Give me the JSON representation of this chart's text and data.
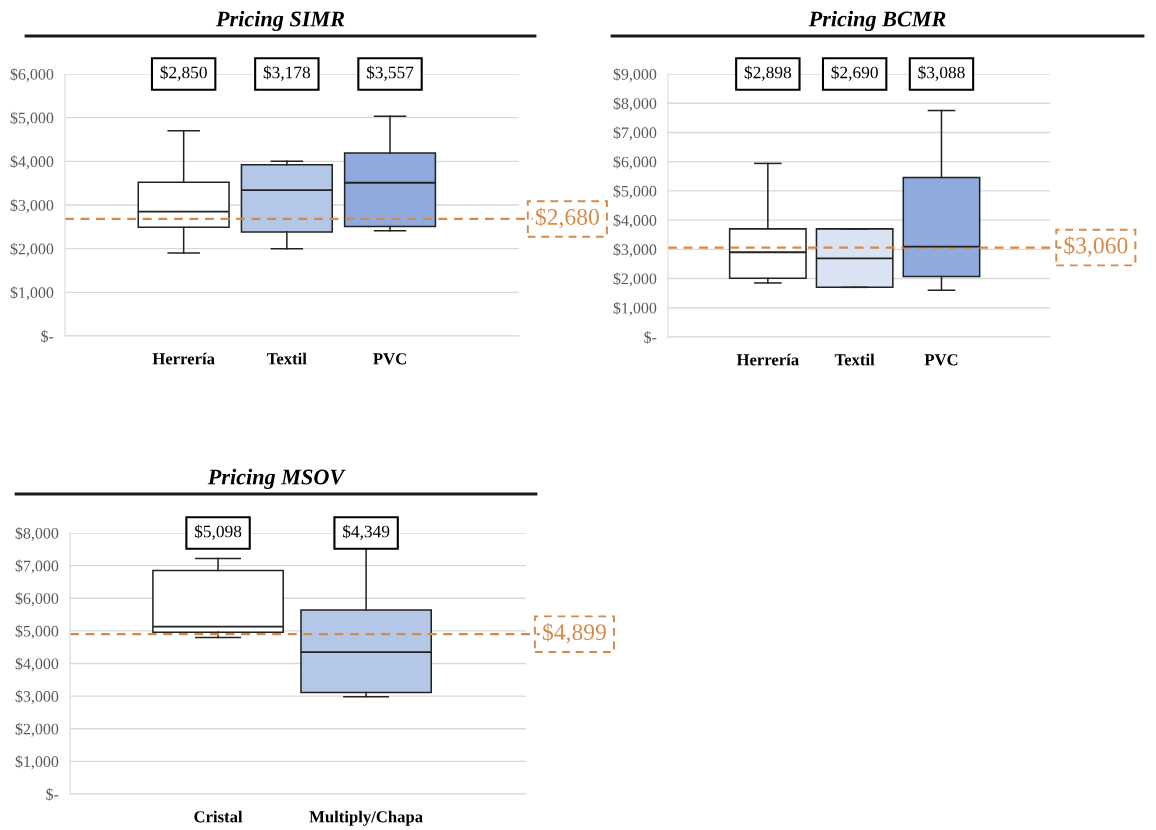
{
  "chart_data": [
    {
      "type": "box",
      "title": "Pricing SIMR",
      "categories": [
        "Herrería",
        "Textil",
        "PVC"
      ],
      "colors": [
        "#ffffff",
        "#b4c7e7",
        "#8faadc"
      ],
      "boxes": [
        {
          "low": 1900,
          "q1": 2490,
          "median": 2850,
          "q3": 3520,
          "high": 4700
        },
        {
          "low": 2000,
          "q1": 2380,
          "median": 3340,
          "q3": 3920,
          "high": 4000
        },
        {
          "low": 2410,
          "q1": 2510,
          "median": 3510,
          "q3": 4190,
          "high": 5030
        }
      ],
      "value_labels": [
        "$2,850",
        "$3,178",
        "$3,557"
      ],
      "ylim": [
        0,
        6000
      ],
      "yticks": [
        {
          "value": 0,
          "label": "$-"
        },
        {
          "value": 1000,
          "label": "$1,000"
        },
        {
          "value": 2000,
          "label": "$2,000"
        },
        {
          "value": 3000,
          "label": "$3,000"
        },
        {
          "value": 4000,
          "label": "$4,000"
        },
        {
          "value": 5000,
          "label": "$5,000"
        },
        {
          "value": 6000,
          "label": "$6,000"
        }
      ],
      "ref_lines": [
        {
          "axis": "y",
          "value": 2680,
          "label": "$2,680",
          "color": "#d58a4a",
          "line_style": "dashed"
        }
      ],
      "grid": "y"
    },
    {
      "type": "box",
      "title": "Pricing BCMR",
      "categories": [
        "Herrería",
        "Textil",
        "PVC"
      ],
      "colors": [
        "#ffffff",
        "#dae3f3",
        "#8faadc"
      ],
      "boxes": [
        {
          "low": 1850,
          "q1": 2010,
          "median": 2900,
          "q3": 3700,
          "high": 5940
        },
        {
          "low": 1700,
          "q1": 1700,
          "median": 2690,
          "q3": 3700,
          "high": 3700
        },
        {
          "low": 1600,
          "q1": 2070,
          "median": 3090,
          "q3": 5460,
          "high": 7750
        }
      ],
      "value_labels": [
        "$2,898",
        "$2,690",
        "$3,088"
      ],
      "ylim": [
        0,
        9000
      ],
      "yticks": [
        {
          "value": 0,
          "label": "$-"
        },
        {
          "value": 1000,
          "label": "$1,000"
        },
        {
          "value": 2000,
          "label": "$2,000"
        },
        {
          "value": 3000,
          "label": "$3,000"
        },
        {
          "value": 4000,
          "label": "$4,000"
        },
        {
          "value": 5000,
          "label": "$5,000"
        },
        {
          "value": 6000,
          "label": "$6,000"
        },
        {
          "value": 7000,
          "label": "$7,000"
        },
        {
          "value": 8000,
          "label": "$8,000"
        },
        {
          "value": 9000,
          "label": "$9,000"
        }
      ],
      "ref_lines": [
        {
          "axis": "y",
          "value": 3060,
          "label": "$3,060",
          "color": "#d58a4a",
          "line_style": "dashed"
        }
      ],
      "grid": "y"
    },
    {
      "type": "box",
      "title": "Pricing MSOV",
      "categories": [
        "Cristal",
        "Multiply/Chapa"
      ],
      "colors": [
        "#ffffff",
        "#b4c7e7"
      ],
      "boxes": [
        {
          "low": 4800,
          "q1": 4960,
          "median": 5130,
          "q3": 6850,
          "high": 7220
        },
        {
          "low": 2980,
          "q1": 3110,
          "median": 4350,
          "q3": 5640,
          "high": 7720
        }
      ],
      "value_labels": [
        "$5,098",
        "$4,349"
      ],
      "ylim": [
        0,
        8000
      ],
      "yticks": [
        {
          "value": 0,
          "label": "$-"
        },
        {
          "value": 1000,
          "label": "$1,000"
        },
        {
          "value": 2000,
          "label": "$2,000"
        },
        {
          "value": 3000,
          "label": "$3,000"
        },
        {
          "value": 4000,
          "label": "$4,000"
        },
        {
          "value": 5000,
          "label": "$5,000"
        },
        {
          "value": 6000,
          "label": "$6,000"
        },
        {
          "value": 7000,
          "label": "$7,000"
        },
        {
          "value": 8000,
          "label": "$8,000"
        }
      ],
      "ref_lines": [
        {
          "axis": "y",
          "value": 4899,
          "label": "$4,899",
          "color": "#d58a4a",
          "line_style": "dashed"
        }
      ],
      "grid": "y"
    }
  ]
}
